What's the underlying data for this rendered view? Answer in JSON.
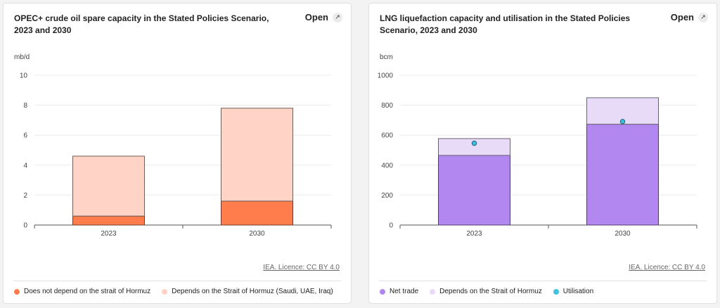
{
  "charts": [
    {
      "title": "OPEC+ crude oil spare capacity in the Stated Policies Scenario, 2023 and 2030",
      "open_label": "Open",
      "credit": "IEA. Licence: CC BY 4.0",
      "legend": [
        {
          "label": "Does not depend on the strait of Hormuz",
          "color": "#ff7d4d"
        },
        {
          "label": "Depends on the Strait of Hormuz (Saudi, UAE, Iraq)",
          "color": "#ffd3c6"
        }
      ]
    },
    {
      "title": "LNG liquefaction capacity and utilisation in the Stated Policies Scenario, 2023 and 2030",
      "open_label": "Open",
      "credit": "IEA. Licence: CC BY 4.0",
      "legend": [
        {
          "label": "Net trade",
          "color": "#b287ef"
        },
        {
          "label": "Depends on the Strait of Hormuz",
          "color": "#e7dbf7"
        },
        {
          "label": "Utilisation",
          "color": "#41c1e1"
        }
      ]
    }
  ],
  "chart_data": [
    {
      "type": "bar",
      "stacked": true,
      "title": "OPEC+ crude oil spare capacity in the Stated Policies Scenario, 2023 and 2030",
      "ylabel": "mb/d",
      "ylim": [
        0,
        10
      ],
      "yticks": [
        0,
        2,
        4,
        6,
        8,
        10
      ],
      "categories": [
        "2023",
        "2030"
      ],
      "grid": true,
      "legend_position": "bottom",
      "series": [
        {
          "name": "Does not depend on the strait of Hormuz",
          "values": [
            0.6,
            1.6
          ],
          "color": "#ff7d4d"
        },
        {
          "name": "Depends on the Strait of Hormuz (Saudi, UAE, Iraq)",
          "values": [
            4.0,
            6.2
          ],
          "color": "#ffd3c6"
        }
      ]
    },
    {
      "type": "bar",
      "stacked": true,
      "title": "LNG liquefaction capacity and utilisation in the Stated Policies Scenario, 2023 and 2030",
      "ylabel": "bcm",
      "ylim": [
        0,
        1000
      ],
      "yticks": [
        0,
        200,
        400,
        600,
        800,
        1000
      ],
      "categories": [
        "2023",
        "2030"
      ],
      "grid": true,
      "legend_position": "bottom",
      "series": [
        {
          "name": "Net trade",
          "values": [
            465,
            673
          ],
          "color": "#b287ef"
        },
        {
          "name": "Depends on the Strait of Hormuz",
          "values": [
            112,
            177
          ],
          "color": "#e7dbf7"
        }
      ],
      "points": {
        "name": "Utilisation",
        "values": [
          546,
          691
        ],
        "color": "#41c1e1"
      }
    }
  ]
}
